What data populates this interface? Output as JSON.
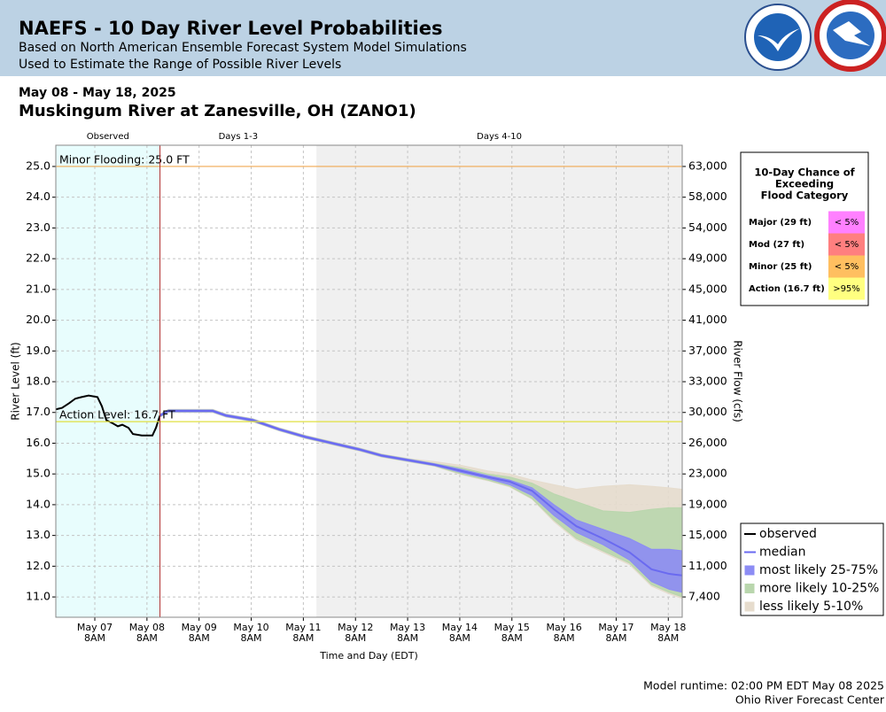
{
  "header": {
    "title": "NAEFS - 10 Day River Level Probabilities",
    "subtitle": [
      "Based on North American Ensemble Forecast System Model Simulations",
      "Used to Estimate the Range of Possible River Levels"
    ]
  },
  "date_range": "May 08 - May 18, 2025",
  "station": "Muskingum River at Zanesville, OH (ZANO1)",
  "chart_data": {
    "type": "band",
    "ylabel": "River Level (ft)",
    "y2label": "River Flow (cfs)",
    "xlabel": "Time and Day (EDT)",
    "xlim": [
      6.585,
      18.6
    ],
    "ylim": [
      10.34,
      25.69
    ],
    "grid": true,
    "legend": "lower right",
    "xticks": [
      {
        "value": 7.333,
        "label": "May 07",
        "time": "8AM"
      },
      {
        "value": 8.333,
        "label": "May 08",
        "time": "8AM"
      },
      {
        "value": 9.333,
        "label": "May 09",
        "time": "8AM"
      },
      {
        "value": 10.333,
        "label": "May 10",
        "time": "8AM"
      },
      {
        "value": 11.333,
        "label": "May 11",
        "time": "8AM"
      },
      {
        "value": 12.333,
        "label": "May 12",
        "time": "8AM"
      },
      {
        "value": 13.333,
        "label": "May 13",
        "time": "8AM"
      },
      {
        "value": 14.333,
        "label": "May 14",
        "time": "8AM"
      },
      {
        "value": 15.333,
        "label": "May 15",
        "time": "8AM"
      },
      {
        "value": 16.333,
        "label": "May 16",
        "time": "8AM"
      },
      {
        "value": 17.333,
        "label": "May 17",
        "time": "8AM"
      },
      {
        "value": 18.333,
        "label": "May 18",
        "time": "8AM"
      }
    ],
    "yticks": [
      {
        "value": 11,
        "label": "11.0"
      },
      {
        "value": 12,
        "label": "12.0"
      },
      {
        "value": 13,
        "label": "13.0"
      },
      {
        "value": 14,
        "label": "14.0"
      },
      {
        "value": 15,
        "label": "15.0"
      },
      {
        "value": 16,
        "label": "16.0"
      },
      {
        "value": 17,
        "label": "17.0"
      },
      {
        "value": 18,
        "label": "18.0"
      },
      {
        "value": 19,
        "label": "19.0"
      },
      {
        "value": 20,
        "label": "20.0"
      },
      {
        "value": 21,
        "label": "21.0"
      },
      {
        "value": 22,
        "label": "22.0"
      },
      {
        "value": 23,
        "label": "23.0"
      },
      {
        "value": 24,
        "label": "24.0"
      },
      {
        "value": 25,
        "label": "25.0"
      }
    ],
    "y2ticks": [
      {
        "value": 7400,
        "label": "7,400"
      },
      {
        "value": 11000,
        "label": "11,000"
      },
      {
        "value": 15000,
        "label": "15,000"
      },
      {
        "value": 19000,
        "label": "19,000"
      },
      {
        "value": 23000,
        "label": "23,000"
      },
      {
        "value": 26000,
        "label": "26,000"
      },
      {
        "value": 30000,
        "label": "30,000"
      },
      {
        "value": 33000,
        "label": "33,000"
      },
      {
        "value": 37000,
        "label": "37,000"
      },
      {
        "value": 41000,
        "label": "41,000"
      },
      {
        "value": 45000,
        "label": "45,000"
      },
      {
        "value": 49000,
        "label": "49,000"
      },
      {
        "value": 54000,
        "label": "54,000"
      },
      {
        "value": 58000,
        "label": "58,000"
      },
      {
        "value": 63000,
        "label": "63,000"
      }
    ],
    "regions": [
      {
        "name": "Observed",
        "start": 6.585,
        "end": 8.583,
        "color": "#e8fdfd"
      },
      {
        "name": "Days 1-3",
        "start": 8.583,
        "end": 11.583,
        "color": "#ffffff"
      },
      {
        "name": "Days 4-10",
        "start": 11.583,
        "end": 18.6,
        "color": "#f0f0f0"
      }
    ],
    "thresholds": [
      {
        "label": "Minor Flooding: 25.0 FT",
        "value": 25.0,
        "color": "#f0a850"
      },
      {
        "label": "Action Level: 16.7 FT",
        "value": 16.7,
        "color": "#e0e040"
      }
    ],
    "series": [
      {
        "name": "less likely 5-10%",
        "kind": "band",
        "color": "#e6dccd",
        "x": [
          8.583,
          8.745,
          9.255,
          9.595,
          9.85,
          10.36,
          10.87,
          11.38,
          11.89,
          12.4,
          12.83,
          13.34,
          13.85,
          14.36,
          14.87,
          15.29,
          15.72,
          16.14,
          16.57,
          17.08,
          17.59,
          18.01,
          18.35,
          18.6
        ],
        "upper": [
          16.95,
          17.1,
          17.1,
          17.1,
          16.95,
          16.8,
          16.5,
          16.25,
          16.05,
          15.85,
          15.65,
          15.5,
          15.4,
          15.28,
          15.1,
          15.0,
          14.8,
          14.65,
          14.5,
          14.6,
          14.65,
          14.6,
          14.55,
          14.5
        ],
        "lower": [
          16.85,
          17.0,
          17.0,
          17.0,
          16.85,
          16.7,
          16.4,
          16.15,
          15.95,
          15.75,
          15.55,
          15.4,
          15.25,
          14.98,
          14.78,
          14.58,
          14.18,
          13.45,
          12.85,
          12.45,
          12.05,
          11.35,
          11.1,
          10.95
        ]
      },
      {
        "name": "more likely 10-25%",
        "kind": "band",
        "color": "#b9d6ad",
        "x": [
          8.583,
          8.745,
          9.255,
          9.595,
          9.85,
          10.36,
          10.87,
          11.38,
          11.89,
          12.4,
          12.83,
          13.34,
          13.85,
          14.36,
          14.87,
          15.29,
          15.72,
          16.14,
          16.57,
          17.08,
          17.59,
          18.01,
          18.35,
          18.6
        ],
        "upper": [
          16.94,
          17.09,
          17.09,
          17.09,
          16.94,
          16.79,
          16.49,
          16.24,
          16.04,
          15.84,
          15.64,
          15.49,
          15.34,
          15.2,
          15.0,
          14.9,
          14.7,
          14.35,
          14.1,
          13.8,
          13.75,
          13.85,
          13.9,
          13.9
        ],
        "lower": [
          16.86,
          17.01,
          17.01,
          17.01,
          16.86,
          16.71,
          16.41,
          16.16,
          15.96,
          15.76,
          15.56,
          15.41,
          15.26,
          15.0,
          14.8,
          14.6,
          14.2,
          13.5,
          12.9,
          12.5,
          12.1,
          11.4,
          11.15,
          11.0
        ]
      },
      {
        "name": "most likely 25-75%",
        "kind": "band",
        "color": "#8c8cf4",
        "x": [
          8.583,
          8.745,
          9.255,
          9.595,
          9.85,
          10.36,
          10.87,
          11.38,
          11.89,
          12.4,
          12.83,
          13.34,
          13.85,
          14.36,
          14.87,
          15.29,
          15.72,
          16.14,
          16.57,
          17.08,
          17.59,
          18.01,
          18.35,
          18.6
        ],
        "upper": [
          16.93,
          17.08,
          17.08,
          17.08,
          16.93,
          16.78,
          16.48,
          16.23,
          16.03,
          15.83,
          15.63,
          15.48,
          15.33,
          15.15,
          14.95,
          14.8,
          14.55,
          14.0,
          13.5,
          13.2,
          12.9,
          12.55,
          12.55,
          12.5
        ],
        "lower": [
          16.87,
          17.02,
          17.02,
          17.02,
          16.87,
          16.72,
          16.42,
          16.17,
          15.97,
          15.77,
          15.57,
          15.42,
          15.27,
          15.05,
          14.85,
          14.65,
          14.3,
          13.65,
          13.1,
          12.7,
          12.2,
          11.5,
          11.25,
          11.15
        ]
      },
      {
        "name": "median",
        "kind": "line",
        "color": "#6a6af0",
        "x": [
          8.583,
          8.745,
          9.255,
          9.595,
          9.85,
          10.36,
          10.87,
          11.38,
          11.89,
          12.4,
          12.83,
          13.34,
          13.85,
          14.36,
          14.87,
          15.29,
          15.72,
          16.14,
          16.57,
          17.08,
          17.59,
          18.01,
          18.35,
          18.6
        ],
        "values": [
          16.9,
          17.05,
          17.05,
          17.05,
          16.9,
          16.75,
          16.45,
          16.2,
          16.0,
          15.8,
          15.6,
          15.45,
          15.3,
          15.1,
          14.9,
          14.75,
          14.45,
          13.85,
          13.3,
          12.9,
          12.45,
          11.9,
          11.75,
          11.7
        ]
      },
      {
        "name": "observed",
        "kind": "line",
        "color": "#000000",
        "x": [
          6.585,
          6.704,
          6.84,
          6.96,
          7.078,
          7.214,
          7.384,
          7.469,
          7.554,
          7.673,
          7.775,
          7.86,
          7.979,
          8.064,
          8.234,
          8.438,
          8.506,
          8.583
        ],
        "values": [
          17.1,
          17.15,
          17.3,
          17.45,
          17.5,
          17.55,
          17.5,
          17.2,
          16.75,
          16.65,
          16.55,
          16.6,
          16.5,
          16.3,
          16.25,
          16.25,
          16.5,
          16.9
        ]
      }
    ],
    "legend_order": [
      4,
      3,
      2,
      1,
      0
    ]
  },
  "flood_table": {
    "title": [
      "10-Day Chance of",
      "Exceeding",
      "Flood Category"
    ],
    "rows": [
      {
        "label": "Major (29 ft)",
        "chance": "< 5%",
        "color": "#ff80ff"
      },
      {
        "label": "Mod (27 ft)",
        "chance": "< 5%",
        "color": "#ff7f7f"
      },
      {
        "label": "Minor (25 ft)",
        "chance": "< 5%",
        "color": "#ffbf60"
      },
      {
        "label": "Action (16.7 ft)",
        "chance": ">95%",
        "color": "#ffff80"
      }
    ]
  },
  "footer": [
    "Model runtime: 02:00 PM EDT May 08 2025",
    "Ohio River Forecast Center"
  ]
}
